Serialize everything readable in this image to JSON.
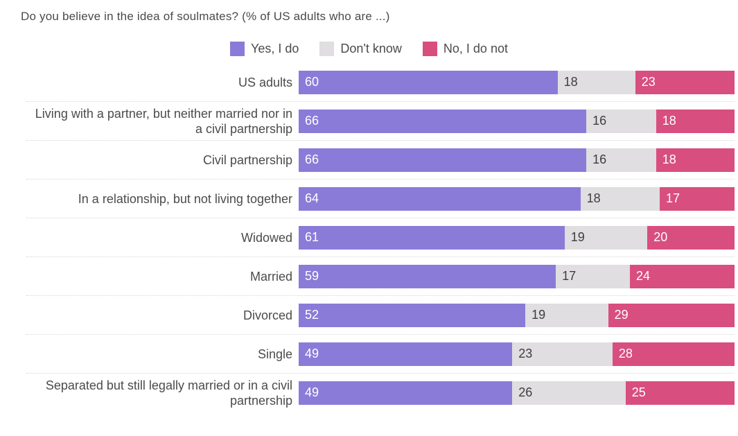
{
  "title": "Do you believe in the idea of soulmates? (% of US adults who are ...)",
  "legend": [
    {
      "label": "Yes, I do",
      "color": "#8b7bd8"
    },
    {
      "label": "Don't know",
      "color": "#e0dee0"
    },
    {
      "label": "No, I do not",
      "color": "#d84e7f"
    }
  ],
  "colors": {
    "background": "#ffffff",
    "separator": "#d6d6d6",
    "label_text": "#4b4b4b",
    "value_text_light": "#ffffff",
    "value_text_dark": "#3e3e3e"
  },
  "chart_data": {
    "type": "bar",
    "orientation": "horizontal",
    "stacked": true,
    "normalized_rows": true,
    "grid": false,
    "legend_position": "top-center",
    "title": "Do you believe in the idea of soulmates? (% of US adults who are ...)",
    "xlabel": "",
    "ylabel": "",
    "categories": [
      "US adults",
      "Living with a partner, but neither married nor in a civil partnership",
      "Civil partnership",
      "In a relationship, but not living together",
      "Widowed",
      "Married",
      "Divorced",
      "Single",
      "Separated but still legally married or in a civil partnership"
    ],
    "series": [
      {
        "name": "Yes, I do",
        "color": "#8b7bd8",
        "text_color": "#ffffff",
        "values": [
          60,
          66,
          66,
          64,
          61,
          59,
          52,
          49,
          49
        ]
      },
      {
        "name": "Don't know",
        "color": "#e0dee0",
        "text_color": "#3e3e3e",
        "values": [
          18,
          16,
          16,
          18,
          19,
          17,
          19,
          23,
          26
        ]
      },
      {
        "name": "No, I do not",
        "color": "#d84e7f",
        "text_color": "#ffffff",
        "values": [
          23,
          18,
          18,
          17,
          20,
          24,
          29,
          28,
          25
        ]
      }
    ]
  }
}
